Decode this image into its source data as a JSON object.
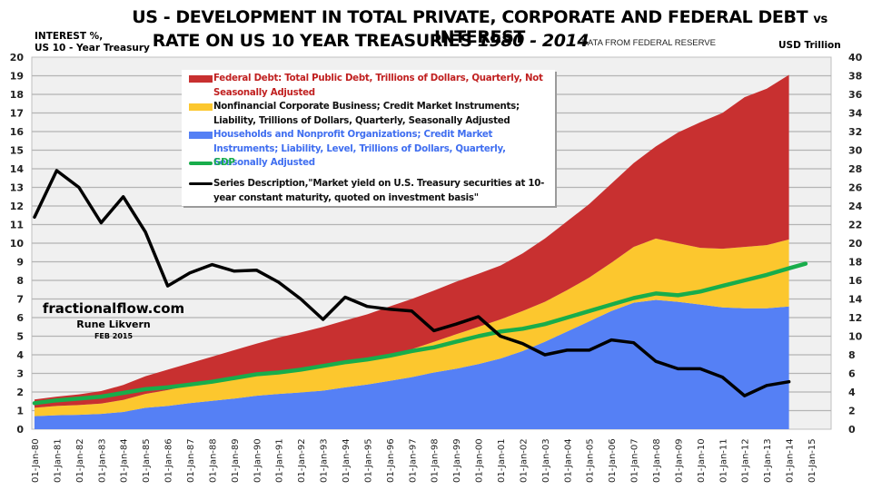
{
  "chart_data": {
    "type": "area",
    "title_line1": "US - DEVELOPMENT IN TOTAL PRIVATE, CORPORATE AND FEDERAL DEBT",
    "title_vs": "vs",
    "title_line1_end": "INTEREST",
    "title_line2": "RATE ON US 10 YEAR TREASURIES",
    "title_years": "1980 - 2014",
    "source_note": "DATA FROM FEDERAL RESERVE",
    "ylabel_left_line1": "INTEREST %,",
    "ylabel_left_line2": "US 10 - Year Treasury",
    "ylabel_right": "USD Trillion",
    "ylim_left": [
      0,
      20
    ],
    "ylim_right": [
      0,
      40
    ],
    "yticks_left": [
      "0",
      "1",
      "2",
      "3",
      "4",
      "5",
      "6",
      "7",
      "8",
      "9",
      "10",
      "11",
      "12",
      "13",
      "14",
      "15",
      "16",
      "17",
      "18",
      "19",
      "20"
    ],
    "yticks_right": [
      "0",
      "2",
      "4",
      "6",
      "8",
      "10",
      "12",
      "14",
      "16",
      "18",
      "20",
      "22",
      "24",
      "26",
      "28",
      "30",
      "32",
      "34",
      "36",
      "38",
      "40"
    ],
    "xticks": [
      "01-Jan-80",
      "01-Jan-81",
      "01-Jan-82",
      "01-Jan-83",
      "01-Jan-84",
      "01-Jan-85",
      "01-Jan-86",
      "01-Jan-87",
      "01-Jan-88",
      "01-Jan-89",
      "01-Jan-90",
      "01-Jan-91",
      "01-Jan-92",
      "01-Jan-93",
      "01-Jan-94",
      "01-Jan-95",
      "01-Jan-96",
      "01-Jan-97",
      "01-Jan-98",
      "01-Jan-99",
      "01-Jan-00",
      "01-Jan-01",
      "01-Jan-02",
      "01-Jan-03",
      "01-Jan-04",
      "01-Jan-05",
      "01-Jan-06",
      "01-Jan-07",
      "01-Jan-08",
      "01-Jan-09",
      "01-Jan-10",
      "01-Jan-11",
      "01-Jan-12",
      "01-Jan-13",
      "01-Jan-14",
      "01-Jan-15"
    ],
    "xlim": [
      1980,
      2015
    ],
    "grid": true,
    "legend_position": "top-center",
    "x": [
      1980,
      1981,
      1982,
      1983,
      1984,
      1985,
      1986,
      1987,
      1988,
      1989,
      1990,
      1991,
      1992,
      1993,
      1994,
      1995,
      1996,
      1997,
      1998,
      1999,
      2000,
      2001,
      2002,
      2003,
      2004,
      2005,
      2006,
      2007,
      2008,
      2009,
      2010,
      2011,
      2012,
      2013,
      2014,
      2014.75
    ],
    "series": [
      {
        "name": "Households and Nonprofit Organizations; Credit Market Instruments; Liability, Level, Trillions of Dollars, Quarterly, Seasonally Adjusted",
        "axis": "right",
        "kind": "stacked-area",
        "color": "#5580f5",
        "values": [
          1.4,
          1.5,
          1.55,
          1.65,
          1.85,
          2.3,
          2.5,
          2.8,
          3.05,
          3.3,
          3.6,
          3.8,
          3.95,
          4.15,
          4.5,
          4.8,
          5.2,
          5.6,
          6.1,
          6.5,
          7.0,
          7.6,
          8.4,
          9.4,
          10.5,
          11.6,
          12.7,
          13.6,
          13.9,
          13.7,
          13.4,
          13.1,
          13.0,
          13.0,
          13.2,
          13.3
        ]
      },
      {
        "name": "Nonfinancial Corporate Business; Credit Market Instruments; Liability, Trillions of Dollars, Quarterly, Seasonally Adjusted",
        "axis": "right",
        "kind": "stacked-area",
        "color": "#fcc72e",
        "values": [
          0.9,
          1.0,
          1.05,
          1.1,
          1.3,
          1.5,
          1.7,
          1.9,
          2.15,
          2.3,
          2.4,
          2.45,
          2.45,
          2.5,
          2.6,
          2.6,
          2.8,
          3.0,
          3.3,
          3.7,
          4.0,
          4.2,
          4.3,
          4.3,
          4.45,
          4.7,
          5.2,
          6.0,
          6.6,
          6.3,
          6.1,
          6.3,
          6.6,
          6.8,
          7.2,
          7.3
        ]
      },
      {
        "name": "Federal Debt: Total Public Debt, Trillions of Dollars, Quarterly, Not Seasonally Adjusted",
        "axis": "right",
        "kind": "stacked-area",
        "color": "#c83030",
        "values": [
          0.9,
          1.0,
          1.15,
          1.35,
          1.6,
          1.9,
          2.2,
          2.4,
          2.6,
          2.9,
          3.2,
          3.6,
          4.0,
          4.35,
          4.6,
          4.95,
          5.2,
          5.4,
          5.5,
          5.65,
          5.7,
          5.8,
          6.2,
          6.8,
          7.4,
          7.9,
          8.5,
          9.0,
          9.9,
          11.9,
          13.5,
          14.6,
          16.1,
          16.8,
          17.7,
          17.9
        ]
      },
      {
        "name": "GDP",
        "axis": "right",
        "kind": "line",
        "color": "#18ad4b",
        "values": [
          2.8,
          3.1,
          3.3,
          3.5,
          3.9,
          4.3,
          4.5,
          4.8,
          5.1,
          5.5,
          5.9,
          6.1,
          6.4,
          6.8,
          7.2,
          7.5,
          7.9,
          8.4,
          8.8,
          9.4,
          10.0,
          10.5,
          10.8,
          11.3,
          12.0,
          12.7,
          13.4,
          14.1,
          14.6,
          14.4,
          14.8,
          15.4,
          16.0,
          16.6,
          17.3,
          17.8
        ]
      },
      {
        "name": "Series Description,\"Market yield on U.S. Treasury securities at 10-year constant maturity, quoted on investment basis\"",
        "axis": "left",
        "kind": "line",
        "color": "#000000",
        "x": [
          1980,
          1981,
          1982,
          1983,
          1984,
          1985,
          1986,
          1987,
          1988,
          1989,
          1990,
          1991,
          1992,
          1993,
          1994,
          1995,
          1996,
          1997,
          1998,
          1999,
          2000,
          2001,
          2002,
          2003,
          2004,
          2005,
          2006,
          2007,
          2008,
          2009,
          2010,
          2011,
          2012,
          2013,
          2014
        ],
        "values": [
          11.4,
          13.9,
          13.0,
          11.1,
          12.5,
          10.6,
          7.7,
          8.4,
          8.85,
          8.5,
          8.55,
          7.9,
          7.0,
          5.9,
          7.1,
          6.6,
          6.45,
          6.35,
          5.3,
          5.65,
          6.05,
          5.0,
          4.6,
          4.0,
          4.25,
          4.25,
          4.8,
          4.65,
          3.65,
          3.25,
          3.25,
          2.8,
          1.8,
          2.35,
          2.55
        ]
      }
    ],
    "legend": [
      {
        "label": "Federal Debt: Total Public Debt, Trillions of Dollars, Quarterly, Not Seasonally Adjusted",
        "color": "#c83030",
        "text_color": "#c01f1f",
        "swatch": "box"
      },
      {
        "label": "Nonfinancial Corporate Business; Credit Market Instruments; Liability, Trillions of Dollars, Quarterly, Seasonally Adjusted",
        "color": "#fcc72e",
        "text_color": "#111111",
        "swatch": "box"
      },
      {
        "label": "Households and Nonprofit Organizations; Credit Market Instruments; Liability, Level, Trillions of Dollars, Quarterly, Seasonally Adjusted",
        "color": "#5580f5",
        "text_color": "#3f6ef0",
        "swatch": "box"
      },
      {
        "label": "GDP",
        "color": "#18ad4b",
        "text_color": "#18ad4b",
        "swatch": "line"
      },
      {
        "label": "Series Description,\"Market yield on U.S. Treasury securities at 10-year constant maturity, quoted on investment basis\"",
        "color": "#000000",
        "text_color": "#111111",
        "swatch": "line"
      }
    ],
    "annotations": {
      "site": "fractionalflow.com",
      "author": "Rune Likvern",
      "date": "FEB 2015"
    }
  }
}
